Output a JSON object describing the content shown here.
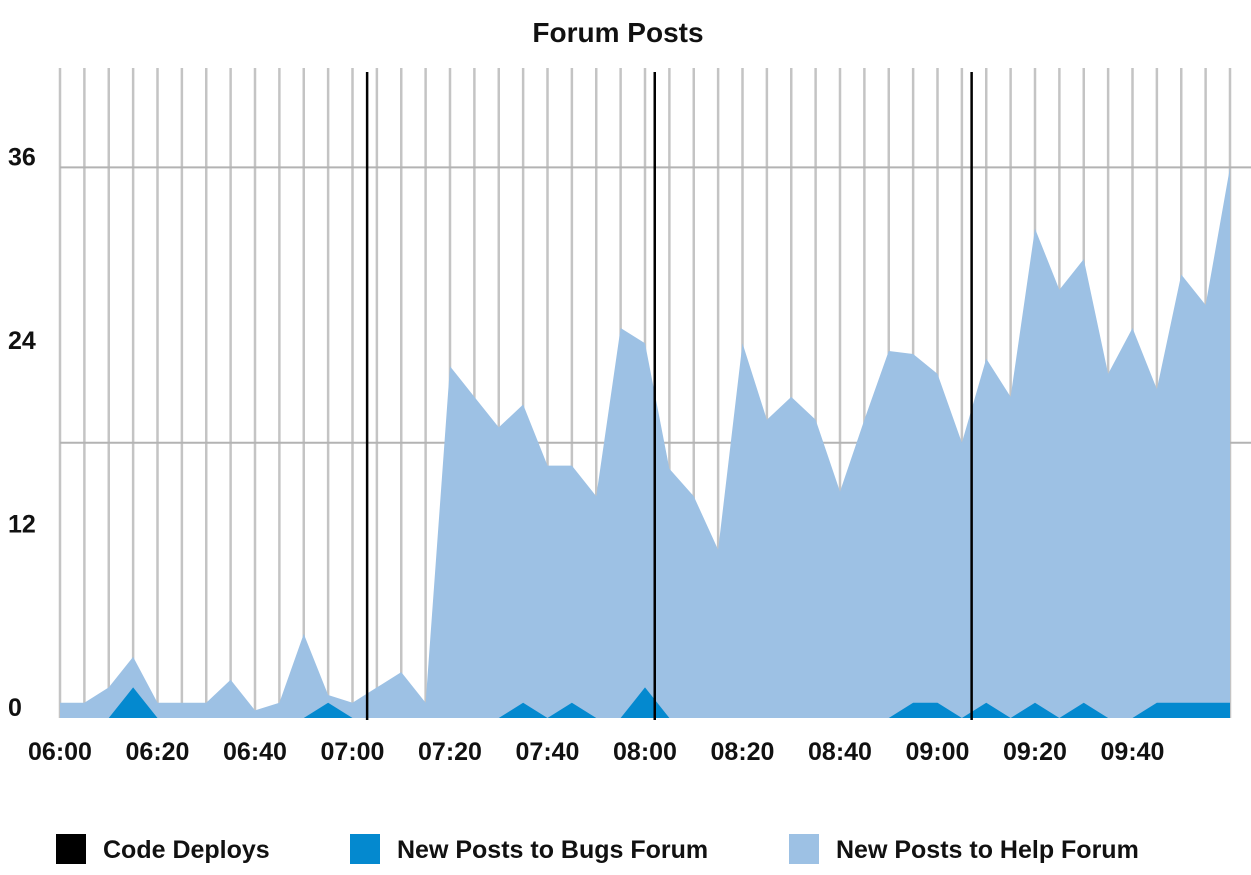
{
  "chart_data": {
    "type": "area",
    "title": "Forum Posts",
    "xlabel": "",
    "ylabel": "",
    "x_tick_labels": [
      "06:00",
      "06:20",
      "06:40",
      "07:00",
      "07:20",
      "07:40",
      "08:00",
      "08:20",
      "08:40",
      "09:00",
      "09:20",
      "09:40"
    ],
    "y_ticks": [
      0,
      12,
      24,
      36
    ],
    "ylim": [
      0,
      42.5
    ],
    "grid": true,
    "legend_position": "bottom",
    "x_minutes": [
      0,
      5,
      10,
      15,
      20,
      25,
      30,
      35,
      40,
      45,
      50,
      55,
      60,
      65,
      70,
      75,
      80,
      85,
      90,
      95,
      100,
      105,
      110,
      115,
      120,
      125,
      130,
      135,
      140,
      145,
      150,
      155,
      160,
      165,
      170,
      175,
      180,
      185,
      190,
      195,
      200,
      205,
      210,
      215,
      220,
      225,
      230,
      235,
      240
    ],
    "series": [
      {
        "name": "New Posts to Bugs Forum",
        "color": "#0489cf",
        "values": [
          0,
          0,
          0,
          2,
          0,
          0,
          0,
          0,
          0,
          0,
          0,
          1,
          0,
          0,
          0,
          0,
          0,
          0,
          0,
          1,
          0,
          1,
          0,
          0,
          2,
          0,
          0,
          0,
          0,
          0,
          0,
          0,
          0,
          0,
          0,
          1,
          1,
          0,
          1,
          0,
          1,
          0,
          1,
          0,
          0,
          1,
          1,
          1,
          1
        ]
      },
      {
        "name": "New Posts to Help Forum",
        "color": "#9dc1e4",
        "values": [
          1,
          1,
          2,
          4,
          1,
          1,
          1,
          2.5,
          0.5,
          1,
          5.5,
          1.5,
          1,
          2,
          3,
          1,
          23,
          21,
          19,
          20.5,
          16.5,
          16.5,
          14.5,
          25.5,
          24.5,
          16.3,
          14.5,
          11,
          24.5,
          19.5,
          21,
          19.5,
          14.8,
          19.5,
          24,
          23.8,
          22.5,
          18,
          23.5,
          21,
          32,
          28,
          30,
          22.5,
          25.5,
          21.5,
          29,
          27,
          36
        ]
      }
    ],
    "code_deploys": {
      "name": "Code Deploys",
      "color": "#000000",
      "x_minutes": [
        63,
        122,
        187
      ]
    }
  }
}
